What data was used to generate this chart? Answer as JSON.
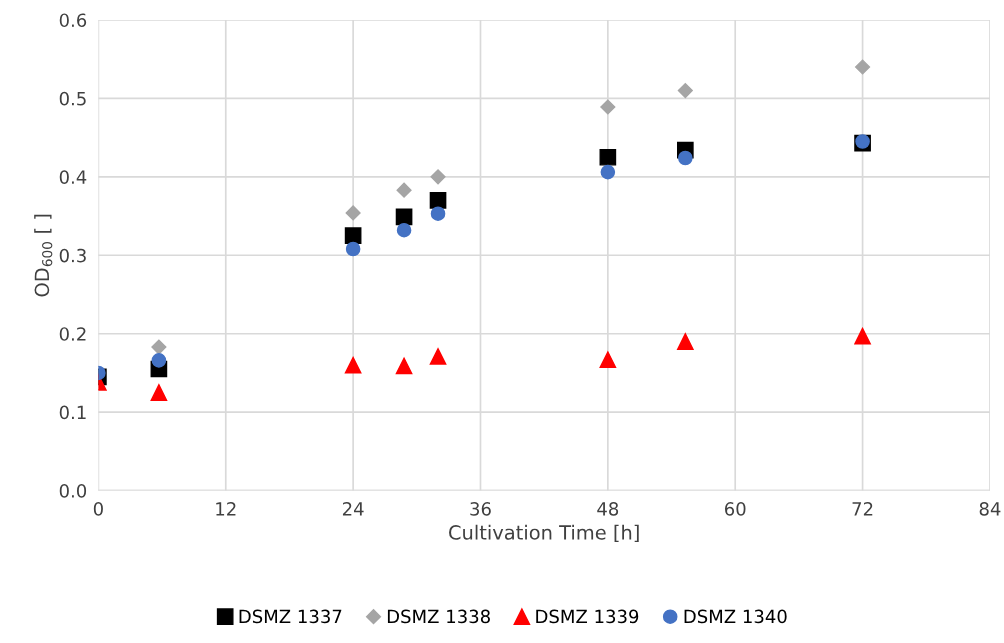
{
  "chart_data": {
    "type": "scatter",
    "xlabel": "Cultivation Time [h]",
    "ylabel": "OD$_{600}$ [ ]",
    "x": [
      0,
      5.7,
      24,
      28.8,
      32,
      48,
      55.3,
      72
    ],
    "series": [
      {
        "name": "DSMZ 1337",
        "color": "#000000",
        "marker": "square",
        "values": [
          0.145,
          0.155,
          0.325,
          0.349,
          0.37,
          0.425,
          0.434,
          0.443
        ]
      },
      {
        "name": "DSMZ 1338",
        "color": "#a5a5a5",
        "marker": "diamond",
        "values": [
          null,
          0.183,
          0.354,
          0.383,
          0.4,
          0.489,
          0.51,
          0.54
        ]
      },
      {
        "name": "DSMZ 1339",
        "color": "#ff0000",
        "marker": "triangle",
        "values": [
          0.138,
          0.125,
          0.16,
          0.159,
          0.171,
          0.167,
          0.19,
          0.197
        ]
      },
      {
        "name": "DSMZ 1340",
        "color": "#4472c4",
        "marker": "circle",
        "values": [
          0.15,
          0.166,
          0.308,
          0.332,
          0.353,
          0.406,
          0.424,
          0.445
        ]
      }
    ],
    "xlim": [
      0,
      84
    ],
    "xticks": [
      0,
      12,
      24,
      36,
      48,
      60,
      72,
      84
    ],
    "ylim": [
      0,
      0.6
    ],
    "yticks": [
      {
        "value": 0,
        "label": "0.0"
      },
      {
        "value": 0.1,
        "label": "0.1"
      },
      {
        "value": 0.2,
        "label": "0.2"
      },
      {
        "value": 0.3,
        "label": "0.3"
      },
      {
        "value": 0.4,
        "label": "0.4"
      },
      {
        "value": 0.5,
        "label": "0.5"
      },
      {
        "value": 0.6,
        "label": "0.6"
      }
    ],
    "grid": true,
    "legend": "bottom"
  }
}
